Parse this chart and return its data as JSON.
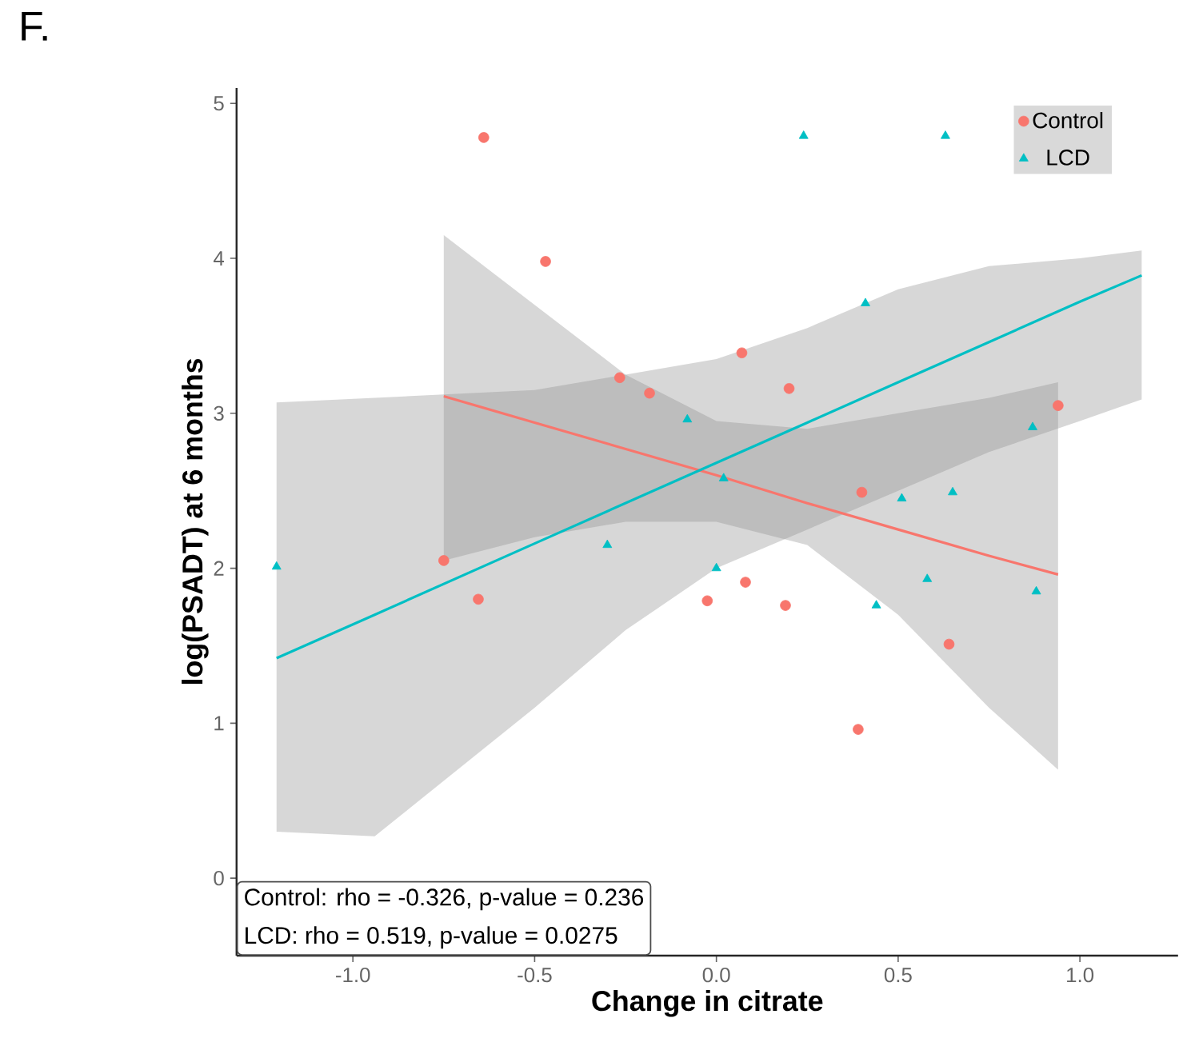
{
  "chart_data": {
    "type": "scatter",
    "title": "F.",
    "xlabel": "Change in citrate",
    "ylabel": "log(PSADT) at 6 months",
    "xlim": [
      -1.32,
      1.27
    ],
    "ylim": [
      -0.5,
      5.1
    ],
    "xticks": [
      {
        "value": -1.0,
        "label": "-1.0"
      },
      {
        "value": -0.5,
        "label": "-0.5"
      },
      {
        "value": 0.0,
        "label": "0.0"
      },
      {
        "value": 0.5,
        "label": "0.5"
      },
      {
        "value": 1.0,
        "label": "1.0"
      }
    ],
    "yticks": [
      0,
      1,
      2,
      3,
      4,
      5
    ],
    "grid": false,
    "legend": "top right",
    "series": [
      {
        "type": "line",
        "color": "#f8766d",
        "x": [
          -0.75,
          -0.5,
          -0.25,
          0.0,
          0.25,
          0.5,
          0.75,
          0.94
        ],
        "values": [
          3.11,
          2.94,
          2.77,
          2.6,
          2.42,
          2.25,
          2.08,
          1.96
        ],
        "lower": [
          2.05,
          2.2,
          2.3,
          2.3,
          2.15,
          1.7,
          1.1,
          0.7
        ],
        "upper": [
          4.15,
          3.7,
          3.25,
          2.95,
          2.9,
          3.0,
          3.1,
          3.2
        ],
        "marker": "none",
        "line_style": "solid"
      },
      {
        "type": "line",
        "color": "#00bfc4",
        "x": [
          -1.21,
          -0.94,
          -0.5,
          -0.25,
          0.0,
          0.25,
          0.5,
          0.75,
          1.0,
          1.17
        ],
        "values": [
          1.42,
          1.7,
          2.16,
          2.42,
          2.68,
          2.94,
          3.2,
          3.46,
          3.72,
          3.89
        ],
        "lower": [
          0.3,
          0.27,
          1.1,
          1.6,
          2.0,
          2.25,
          2.5,
          2.75,
          2.95,
          3.09
        ],
        "upper": [
          3.07,
          3.1,
          3.15,
          3.25,
          3.35,
          3.55,
          3.8,
          3.95,
          4.0,
          4.05
        ],
        "marker": "none",
        "line_style": "solid"
      },
      {
        "name": "Control",
        "color": "#f8766d",
        "marker": "circle",
        "x": [
          -0.64,
          -0.47,
          -0.266,
          -0.184,
          0.07,
          0.2,
          0.94,
          0.4,
          -0.75,
          -0.655,
          -0.025,
          0.08,
          0.19,
          0.64,
          0.39
        ],
        "values": [
          4.78,
          3.98,
          3.23,
          3.13,
          3.39,
          3.16,
          3.05,
          2.49,
          2.05,
          1.8,
          1.79,
          1.91,
          1.76,
          1.51,
          0.96
        ]
      },
      {
        "name": "LCD",
        "color": "#00bfc4",
        "marker": "triangle",
        "x": [
          0.24,
          0.63,
          0.41,
          0.87,
          0.51,
          0.65,
          -0.08,
          -1.21,
          -0.3,
          0.0,
          0.58,
          0.88,
          0.44,
          0.02
        ],
        "values": [
          4.79,
          4.79,
          3.71,
          2.91,
          2.45,
          2.49,
          2.96,
          2.01,
          2.15,
          2.0,
          1.93,
          1.85,
          1.76,
          2.58
        ]
      }
    ],
    "annotations": [
      "Control: rho = -0.326, p-value = 0.236",
      "LCD: rho = 0.519, p-value = 0.0275"
    ]
  }
}
